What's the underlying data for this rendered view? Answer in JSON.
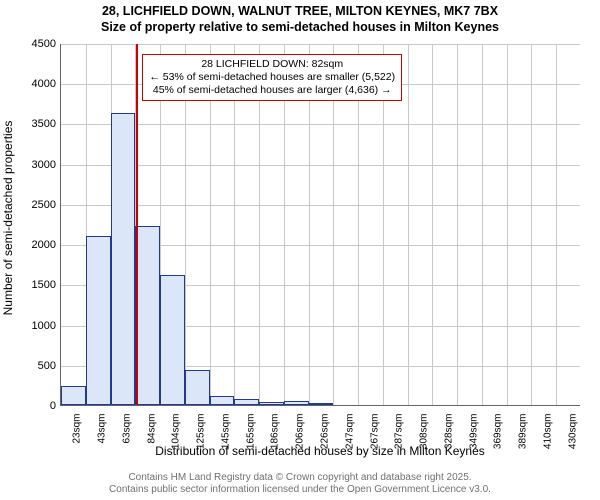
{
  "title_line1": "28, LICHFIELD DOWN, WALNUT TREE, MILTON KEYNES, MK7 7BX",
  "title_line2": "Size of property relative to semi-detached houses in Milton Keynes",
  "chart": {
    "type": "histogram",
    "ylabel": "Number of semi-detached properties",
    "xlabel": "Distribution of semi-detached houses by size in Milton Keynes",
    "ylim": [
      0,
      4500
    ],
    "yticks": [
      0,
      500,
      1000,
      1500,
      2000,
      2500,
      3000,
      3500,
      4000,
      4500
    ],
    "xticks": [
      "23sqm",
      "43sqm",
      "63sqm",
      "84sqm",
      "104sqm",
      "125sqm",
      "145sqm",
      "165sqm",
      "186sqm",
      "206sqm",
      "226sqm",
      "247sqm",
      "267sqm",
      "287sqm",
      "308sqm",
      "328sqm",
      "349sqm",
      "369sqm",
      "389sqm",
      "410sqm",
      "430sqm"
    ],
    "bars": [
      {
        "v": 240
      },
      {
        "v": 2100
      },
      {
        "v": 3630
      },
      {
        "v": 2220
      },
      {
        "v": 1620
      },
      {
        "v": 440
      },
      {
        "v": 110
      },
      {
        "v": 80
      },
      {
        "v": 40
      },
      {
        "v": 45
      },
      {
        "v": 10
      },
      {
        "v": 5
      },
      {
        "v": 5
      },
      {
        "v": 0
      },
      {
        "v": 3
      },
      {
        "v": 0
      },
      {
        "v": 0
      },
      {
        "v": 0
      },
      {
        "v": 0
      },
      {
        "v": 0
      },
      {
        "v": 0
      }
    ],
    "bar_fill": "#dbe6f8",
    "bar_border": "#223a8a",
    "grid_color": "#c8c8c8",
    "background": "#ffffff",
    "marker_color": "#cc0000",
    "marker_sqm": 82,
    "x_domain": [
      23,
      430
    ],
    "annotation": {
      "line1": "28 LICHFIELD DOWN: 82sqm",
      "line2": "← 53% of semi-detached houses are smaller (5,522)",
      "line3": "45% of semi-detached houses are larger (4,636) →"
    }
  },
  "footer_line1": "Contains HM Land Registry data © Crown copyright and database right 2025.",
  "footer_line2": "Contains public sector information licensed under the Open Government Licence v3.0."
}
